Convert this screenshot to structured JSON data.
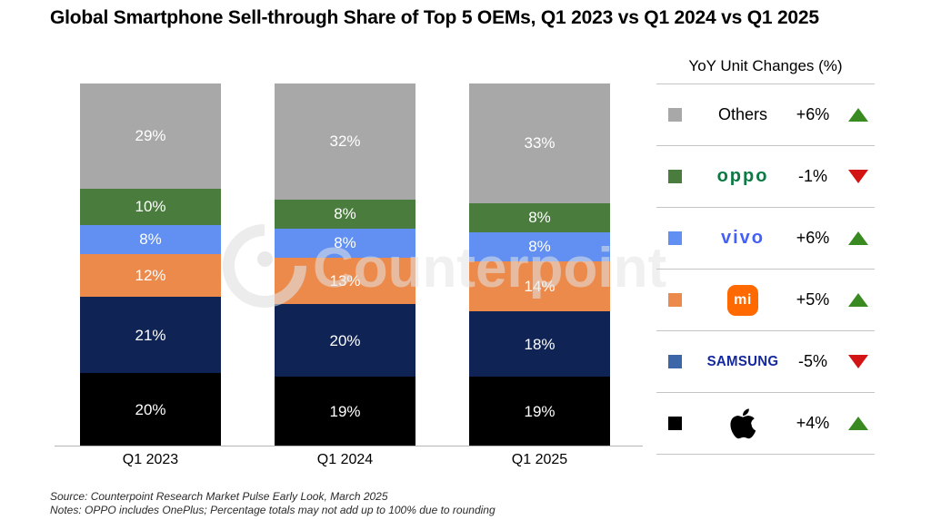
{
  "title": "Global Smartphone Sell-through Share of Top 5 OEMs, Q1 2023 vs Q1 2024 vs Q1 2025",
  "watermark": "Counterpoint",
  "chart_data": {
    "type": "bar",
    "stacked": true,
    "title": "Global Smartphone Sell-through Share of Top 5 OEMs, Q1 2023 vs Q1 2024 vs Q1 2025",
    "categories": [
      "Q1 2023",
      "Q1 2024",
      "Q1 2025"
    ],
    "series": [
      {
        "name": "Apple",
        "color": "#000000",
        "values": [
          20,
          19,
          19
        ]
      },
      {
        "name": "Samsung",
        "color": "#0f2355",
        "values": [
          21,
          20,
          18
        ]
      },
      {
        "name": "Xiaomi",
        "color": "#ec8a4c",
        "values": [
          12,
          13,
          14
        ]
      },
      {
        "name": "vivo",
        "color": "#6190f2",
        "values": [
          8,
          8,
          8
        ]
      },
      {
        "name": "OPPO",
        "color": "#4a7c3e",
        "values": [
          10,
          8,
          8
        ]
      },
      {
        "name": "Others",
        "color": "#a8a8a8",
        "values": [
          29,
          32,
          33
        ]
      }
    ],
    "value_suffix": "%",
    "ylim": [
      0,
      100
    ],
    "grid": false,
    "legend_position": "right"
  },
  "legend": {
    "title": "YoY Unit Changes (%)",
    "up_color": "#3a8a22",
    "down_color": "#d31414",
    "rows": [
      {
        "id": "others",
        "label": "Others",
        "logo": "text",
        "logo_text": "Others",
        "logo_color": "#000000",
        "change": "+6%",
        "direction": "up",
        "swatch": "#a8a8a8"
      },
      {
        "id": "oppo",
        "label": "OPPO",
        "logo": "oppo",
        "logo_text": "oppo",
        "logo_color": "#0c7a45",
        "change": "-1%",
        "direction": "down",
        "swatch": "#4a7c3e"
      },
      {
        "id": "vivo",
        "label": "vivo",
        "logo": "vivo",
        "logo_text": "vivo",
        "logo_color": "#4560f6",
        "change": "+6%",
        "direction": "up",
        "swatch": "#6190f2"
      },
      {
        "id": "xiaomi",
        "label": "Xiaomi",
        "logo": "mi",
        "logo_text": "mi",
        "logo_color": "#ff6900",
        "change": "+5%",
        "direction": "up",
        "swatch": "#ec8a4c"
      },
      {
        "id": "samsung",
        "label": "Samsung",
        "logo": "samsung",
        "logo_text": "SAMSUNG",
        "logo_color": "#1428a0",
        "change": "-5%",
        "direction": "down",
        "swatch": "#3c66a8"
      },
      {
        "id": "apple",
        "label": "Apple",
        "logo": "apple",
        "logo_color": "#000000",
        "change": "+4%",
        "direction": "up",
        "swatch": "#000000"
      }
    ]
  },
  "footer": {
    "source": "Source: Counterpoint Research Market Pulse Early Look, March 2025",
    "notes": "Notes: OPPO includes OnePlus; Percentage totals may not add up to 100% due to rounding"
  }
}
